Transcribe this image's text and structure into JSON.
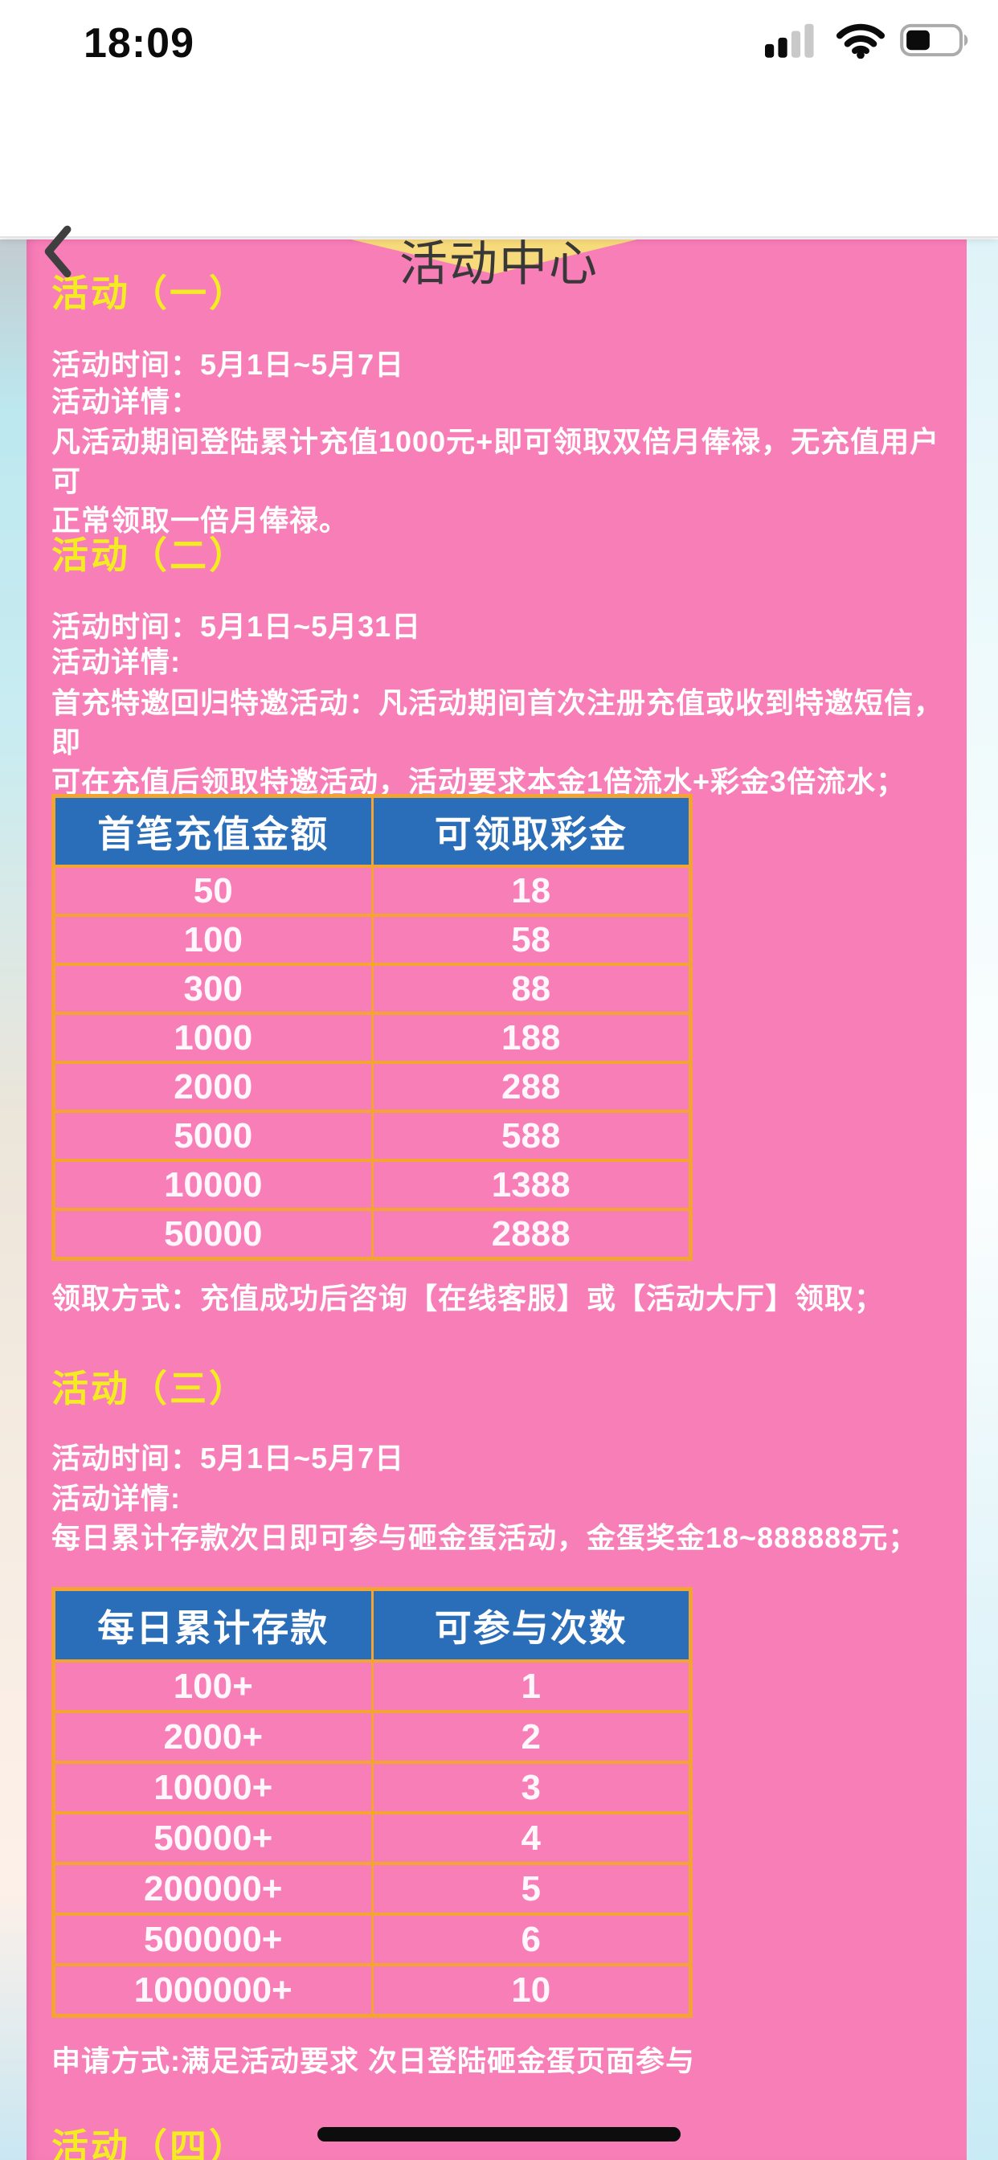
{
  "status_bar": {
    "time": "18:09",
    "icons": {
      "cellular": "cellular-signal-icon (2 of 4 bars filled)",
      "wifi": "wifi-icon",
      "battery": "battery-icon (about 40% filled)"
    }
  },
  "nav": {
    "title": "活动中心",
    "back_icon": "chevron-left-icon"
  },
  "theme": {
    "card_pink": "#f87eb8",
    "heading_yellow": "#f4ec22",
    "table_header_blue": "#2a6db8",
    "table_border_orange": "#f3a433",
    "banner_yellow": "#f7da7b",
    "text_white": "#ffffff"
  },
  "sections": [
    {
      "heading": "活动（一）",
      "time": "活动时间：5月1日~5月7日",
      "detail_label": "活动详情：",
      "detail_lines": [
        "凡活动期间登陆累计充值1000元+即可领取双倍月俸禄，无充值用户可",
        "正常领取一倍月俸禄。"
      ]
    },
    {
      "heading": "活动（二）",
      "time": "活动时间：5月1日~5月31日",
      "detail_label": "活动详情:",
      "detail_lines": [
        "首充特邀回归特邀活动：凡活动期间首次注册充值或收到特邀短信，即",
        "可在充值后领取特邀活动，活动要求本金1倍流水+彩金3倍流水；"
      ],
      "table": {
        "headers": [
          "首笔充值金额",
          "可领取彩金"
        ],
        "rows": [
          [
            "50",
            "18"
          ],
          [
            "100",
            "58"
          ],
          [
            "300",
            "88"
          ],
          [
            "1000",
            "188"
          ],
          [
            "2000",
            "288"
          ],
          [
            "5000",
            "588"
          ],
          [
            "10000",
            "1388"
          ],
          [
            "50000",
            "2888"
          ]
        ]
      },
      "note": "领取方式：充值成功后咨询【在线客服】或【活动大厅】领取；"
    },
    {
      "heading": "活动（三）",
      "time": "活动时间：5月1日~5月7日",
      "detail_label": "活动详情:",
      "detail_lines": [
        "每日累计存款次日即可参与砸金蛋活动，金蛋奖金18~888888元；"
      ],
      "table": {
        "headers": [
          "每日累计存款",
          "可参与次数"
        ],
        "rows": [
          [
            "100+",
            "1"
          ],
          [
            "2000+",
            "2"
          ],
          [
            "10000+",
            "3"
          ],
          [
            "50000+",
            "4"
          ],
          [
            "200000+",
            "5"
          ],
          [
            "500000+",
            "6"
          ],
          [
            "1000000+",
            "10"
          ]
        ]
      },
      "note": "申请方式:满足活动要求 次日登陆砸金蛋页面参与"
    },
    {
      "heading": "活动（四）"
    }
  ]
}
